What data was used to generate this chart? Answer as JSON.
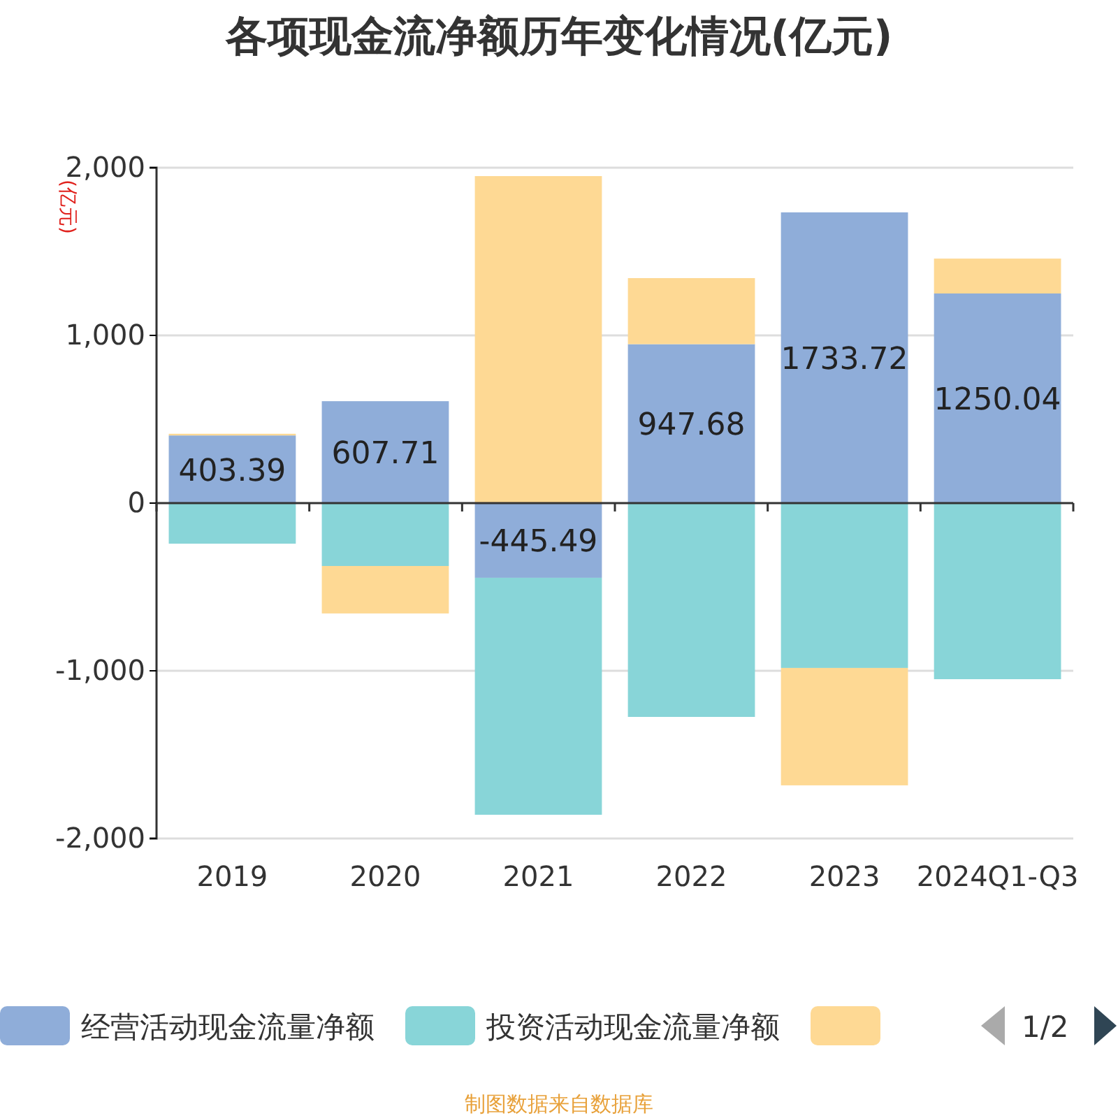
{
  "chart_data": {
    "type": "bar",
    "title": "各项现金流净额历年变化情况(亿元)",
    "ylabel": "(亿元)",
    "categories": [
      "2019",
      "2020",
      "2021",
      "2022",
      "2023",
      "2024Q1-Q3"
    ],
    "series": [
      {
        "name": "经营活动现金流量净额",
        "color": "#8fadd9",
        "values": [
          403.39,
          607.71,
          -445.49,
          947.68,
          1733.72,
          1250.04
        ],
        "value_labels": [
          "403.39",
          "607.71",
          "-445.49",
          "947.68",
          "1733.72",
          "1250.04"
        ]
      },
      {
        "name": "投资活动现金流量净额",
        "color": "#88d5d8",
        "values": [
          -242,
          -375,
          -1413,
          -1275,
          -983,
          -1050
        ]
      },
      {
        "color": "#fed994",
        "values": [
          10,
          -283,
          1950,
          394,
          -700,
          208
        ]
      }
    ],
    "stacked": true,
    "ylim": [
      -2000,
      2000
    ],
    "yticks": [
      {
        "value": -2000,
        "label": "-2,000"
      },
      {
        "value": -1000,
        "label": "-1,000"
      },
      0,
      {
        "value": 1000,
        "label": "1,000"
      },
      {
        "value": 2000,
        "label": "2,000"
      }
    ],
    "grid": "y",
    "legend": "bottom",
    "annotations": [
      "1/2",
      "制图数据来自数据库"
    ]
  }
}
